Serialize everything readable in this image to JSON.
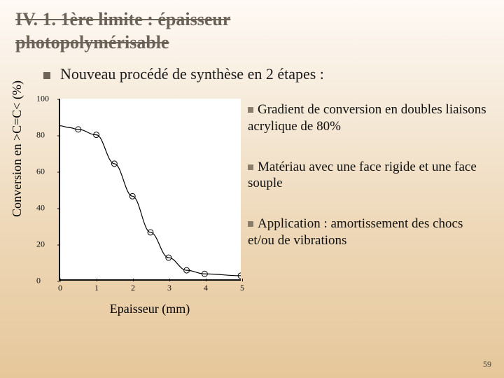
{
  "title": {
    "line1": "IV. 1. 1ère limite : épaisseur",
    "line2": "photopolymérisable"
  },
  "subtitle": "Nouveau procédé de synthèse en 2 étapes :",
  "chart": {
    "type": "line",
    "xlabel": "Epaisseur (mm)",
    "ylabel": "Conversion en >C=C< (%)",
    "xlim": [
      0,
      5
    ],
    "ylim": [
      0,
      100
    ],
    "xtick_step": 1,
    "ytick_step": 20,
    "xticks": [
      0,
      1,
      2,
      3,
      4,
      5
    ],
    "yticks": [
      0,
      20,
      40,
      60,
      80,
      100
    ],
    "points_x": [
      0.5,
      1.0,
      1.5,
      2.0,
      2.5,
      3.0,
      3.5,
      4.0,
      5.0
    ],
    "points_y": [
      83,
      80,
      64,
      46,
      26,
      12,
      5,
      3,
      2
    ],
    "curve_prefix": [
      [
        0,
        85
      ],
      [
        0.25,
        84
      ]
    ],
    "line_color": "#000000",
    "line_width": 1.2,
    "marker_style": "circle-open",
    "marker_radius": 4,
    "marker_stroke": "#000000",
    "marker_fill": "none",
    "background_color": "#ffffff",
    "axis_color": "#111111",
    "tick_font_size": 12
  },
  "bullets": [
    "Gradient de conversion en doubles liaisons acrylique de 80%",
    "Matériau avec une face rigide et une face souple",
    "Application : amortissement des chocs et/ou de vibrations"
  ],
  "slide_number": "59",
  "colors": {
    "title": "#6b6258",
    "text": "#111111",
    "bg_top": "#fffaf5",
    "bg_bottom": "#e6c79a"
  }
}
